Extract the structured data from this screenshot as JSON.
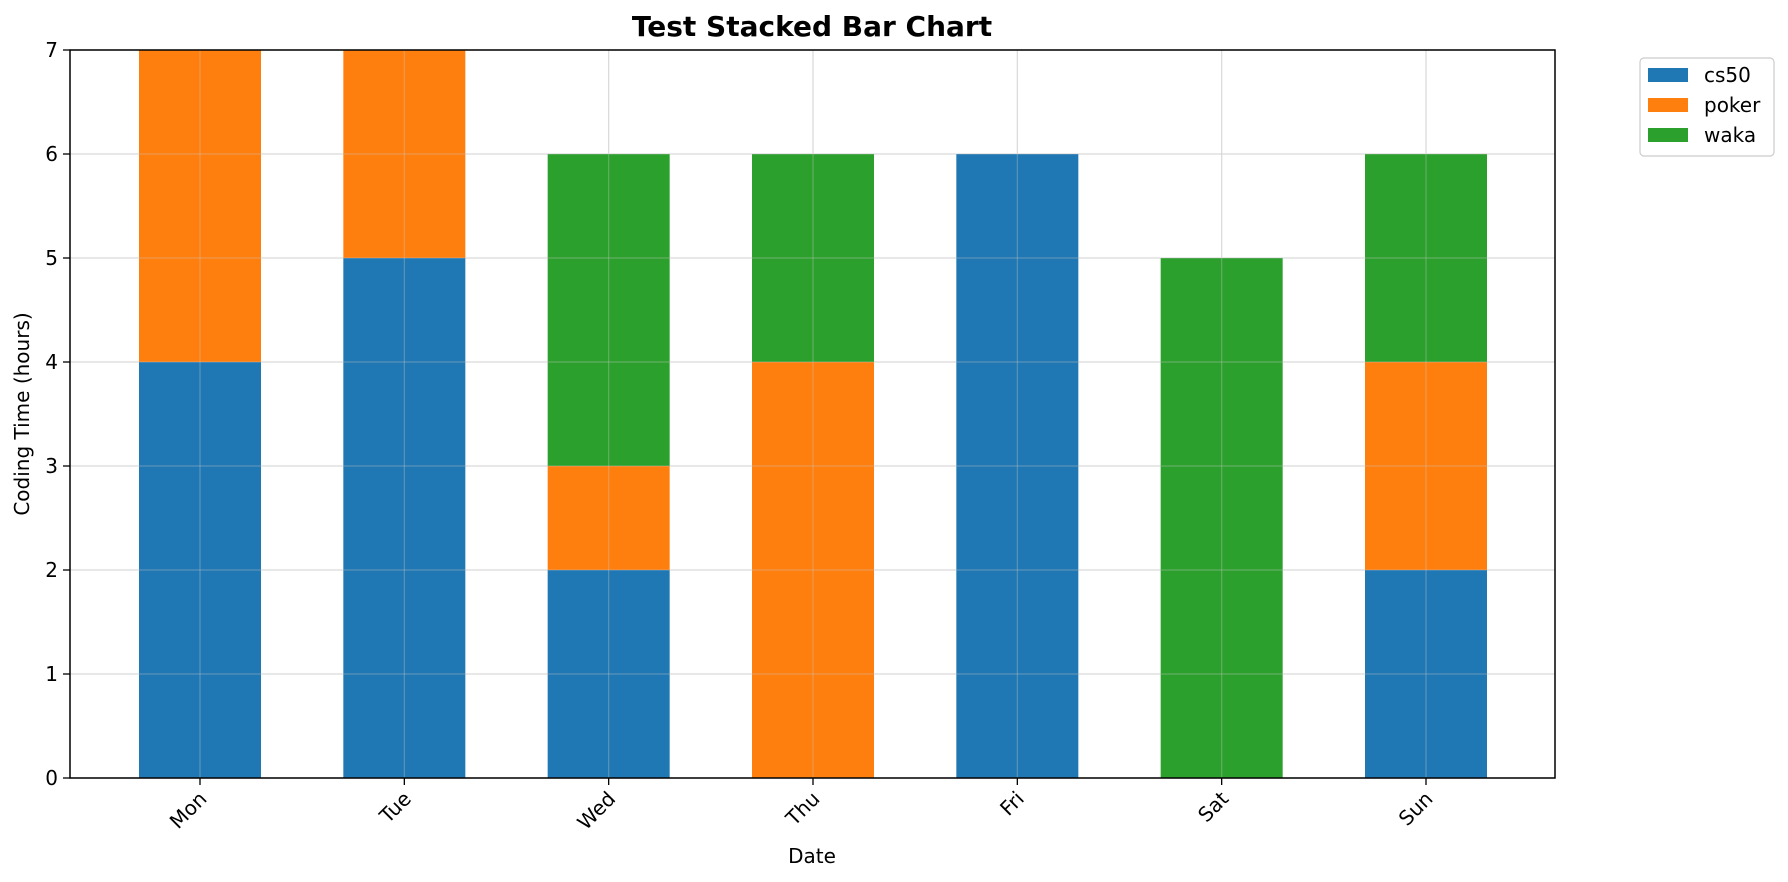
{
  "chart_data": {
    "type": "bar",
    "stacked": true,
    "title": "Test Stacked Bar Chart",
    "xlabel": "Date",
    "ylabel": "Coding Time (hours)",
    "categories": [
      "Mon",
      "Tue",
      "Wed",
      "Thu",
      "Fri",
      "Sat",
      "Sun"
    ],
    "ylim": [
      0,
      7
    ],
    "yticks": [
      0,
      1,
      2,
      3,
      4,
      5,
      6,
      7
    ],
    "grid": true,
    "legend_position": "upper-right-outside",
    "series": [
      {
        "name": "cs50",
        "color": "#1f77b4",
        "values": [
          4,
          5,
          2,
          0,
          6,
          0,
          2
        ]
      },
      {
        "name": "poker",
        "color": "#ff7f0e",
        "values": [
          3,
          2,
          1,
          4,
          0,
          0,
          2
        ]
      },
      {
        "name": "waka",
        "color": "#2ca02c",
        "values": [
          0,
          0,
          3,
          2,
          0,
          5,
          2
        ]
      }
    ]
  }
}
